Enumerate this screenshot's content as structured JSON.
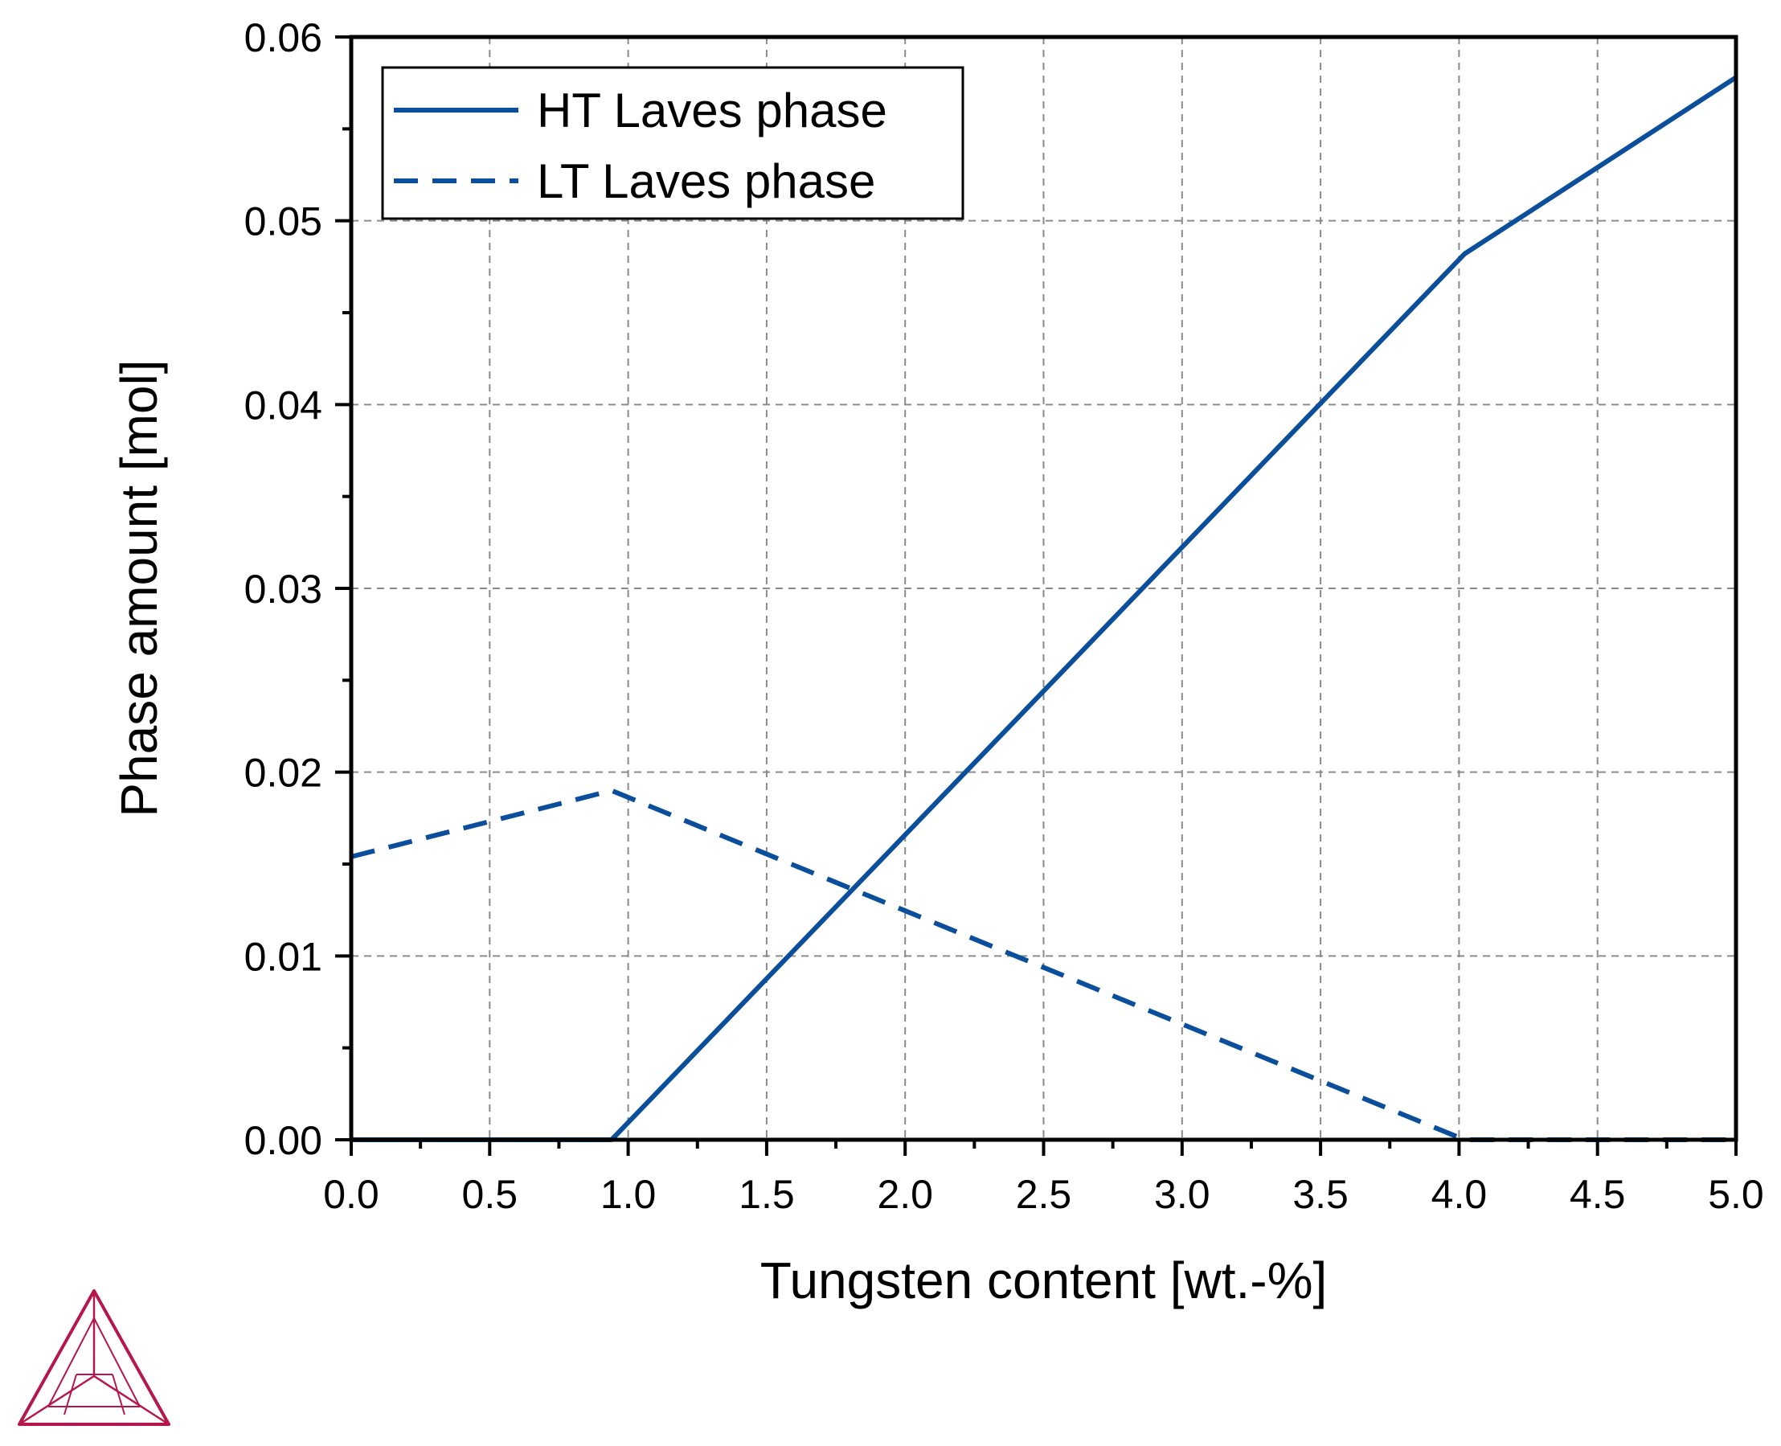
{
  "chart_data": {
    "type": "line",
    "title": "",
    "xlabel": "Tungsten content [wt.-%]",
    "ylabel": "Phase amount [mol]",
    "xlim": [
      0.0,
      5.0
    ],
    "ylim": [
      0.0,
      0.06
    ],
    "x_ticks": [
      0.0,
      0.5,
      1.0,
      1.5,
      2.0,
      2.5,
      3.0,
      3.5,
      4.0,
      4.5,
      5.0
    ],
    "x_tick_labels": [
      "0.0",
      "0.5",
      "1.0",
      "1.5",
      "2.0",
      "2.5",
      "3.0",
      "3.5",
      "4.0",
      "4.5",
      "5.0"
    ],
    "y_ticks": [
      0.0,
      0.01,
      0.02,
      0.03,
      0.04,
      0.05,
      0.06
    ],
    "y_tick_labels": [
      "0.00",
      "0.01",
      "0.02",
      "0.03",
      "0.04",
      "0.05",
      "0.06"
    ],
    "grid": true,
    "legend_position": "top-left",
    "series": [
      {
        "name": "HT Laves phase",
        "style": "solid",
        "color": "#0B4F9C",
        "x": [
          0.0,
          0.94,
          4.02,
          5.0
        ],
        "y": [
          0.0,
          0.0,
          0.0482,
          0.0578
        ]
      },
      {
        "name": "LT Laves phase",
        "style": "dashed",
        "color": "#0B4F9C",
        "x": [
          0.0,
          0.94,
          4.02,
          5.0
        ],
        "y": [
          0.0154,
          0.019,
          0.0,
          0.0
        ]
      }
    ]
  },
  "logo": {
    "name": "thermo-calc-logo",
    "color": "#B5174A"
  }
}
